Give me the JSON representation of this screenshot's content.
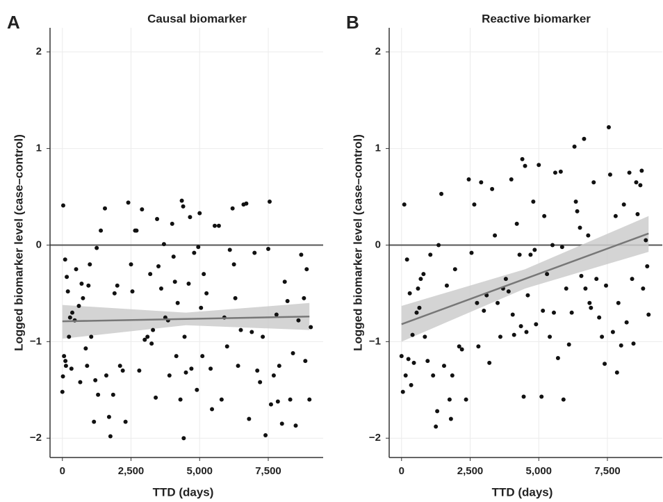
{
  "chart_data": [
    {
      "type": "scatter",
      "panel_label": "A",
      "title": "Causal biomarker",
      "xlabel": "TTD (days)",
      "ylabel": "Logged biomarker level (case–control)",
      "xlim": [
        -450,
        9500
      ],
      "ylim": [
        -2.2,
        2.25
      ],
      "xticks": [
        0,
        {
          "value": 2500,
          "label": "2,500"
        },
        {
          "value": 5000,
          "label": "5,000"
        },
        {
          "value": 7500,
          "label": "7,500"
        }
      ],
      "yticks": [
        {
          "value": -2,
          "label": "−2"
        },
        {
          "value": -1,
          "label": "−1"
        },
        0,
        1,
        2
      ],
      "grid": true,
      "hline": 0,
      "color": "#111111",
      "fit_color": "#777777",
      "band_color": "#cccccc",
      "x": [
        30,
        60,
        0,
        20,
        100,
        110,
        130,
        160,
        200,
        240,
        280,
        330,
        360,
        450,
        500,
        600,
        650,
        700,
        750,
        850,
        900,
        950,
        1000,
        1050,
        1150,
        1200,
        1250,
        1300,
        1400,
        1550,
        1600,
        1700,
        1750,
        1850,
        1900,
        2000,
        2100,
        2200,
        2300,
        2400,
        2500,
        2550,
        2650,
        2700,
        2800,
        2900,
        3000,
        3100,
        3200,
        3250,
        3300,
        3400,
        3450,
        3500,
        3600,
        3700,
        3750,
        3850,
        3900,
        4000,
        4050,
        4100,
        4150,
        4200,
        4300,
        4350,
        4400,
        4420,
        4450,
        4500,
        4600,
        4650,
        4700,
        4800,
        4900,
        4950,
        5000,
        5050,
        5100,
        5150,
        5250,
        5400,
        5450,
        5550,
        5700,
        5800,
        5900,
        6000,
        6100,
        6200,
        6250,
        6300,
        6400,
        6500,
        6600,
        6700,
        6800,
        6900,
        7000,
        7100,
        7200,
        7300,
        7400,
        7500,
        7550,
        7600,
        7700,
        7800,
        7850,
        7900,
        8000,
        8100,
        8200,
        8300,
        8400,
        8500,
        8600,
        8700,
        8800,
        8850,
        8900,
        9000,
        9050
      ],
      "y": [
        0.41,
        -1.15,
        -1.52,
        -1.36,
        -0.15,
        -1.2,
        -1.25,
        -0.33,
        -0.48,
        -0.95,
        -0.75,
        -1.28,
        -0.7,
        -0.78,
        -0.25,
        -0.63,
        -1.42,
        -0.4,
        -0.55,
        -1.07,
        -1.25,
        -0.42,
        -0.2,
        -0.95,
        -1.83,
        -1.4,
        -0.03,
        -1.55,
        0.15,
        0.38,
        -1.35,
        -1.78,
        -1.98,
        -1.55,
        -0.5,
        -0.42,
        -1.25,
        -1.3,
        -1.83,
        0.44,
        -0.2,
        -0.48,
        0.15,
        0.15,
        -1.3,
        0.37,
        -0.98,
        -0.95,
        -0.3,
        -1.02,
        -0.88,
        -1.58,
        0.27,
        -0.22,
        -0.45,
        0.01,
        -0.75,
        -0.78,
        -1.35,
        0.22,
        -0.12,
        -0.38,
        -1.15,
        -0.6,
        -1.6,
        0.46,
        0.4,
        -2.0,
        -0.95,
        -1.32,
        -0.4,
        0.29,
        -1.28,
        -0.08,
        -1.5,
        -0.02,
        0.33,
        -0.65,
        -1.15,
        -0.3,
        -0.5,
        -1.28,
        -1.7,
        0.2,
        0.2,
        -1.6,
        -0.75,
        -1.05,
        -0.05,
        0.38,
        -0.2,
        -0.55,
        -1.25,
        -0.88,
        0.42,
        0.43,
        -1.8,
        -0.9,
        -0.08,
        -1.3,
        -1.42,
        -0.95,
        -1.97,
        -0.04,
        0.45,
        -1.65,
        -1.35,
        -0.72,
        -1.62,
        -1.25,
        -1.85,
        -0.38,
        -0.58,
        -1.6,
        -1.12,
        -1.87,
        -0.78,
        -0.1,
        -0.55,
        -1.2,
        -0.25,
        -1.6,
        -0.85
      ],
      "fit": {
        "x": [
          0,
          4500,
          9000
        ],
        "y": [
          -0.79,
          -0.765,
          -0.74
        ],
        "lower": [
          -0.97,
          -0.83,
          -0.88
        ],
        "upper": [
          -0.62,
          -0.7,
          -0.6
        ]
      }
    },
    {
      "type": "scatter",
      "panel_label": "B",
      "title": "Reactive biomarker",
      "xlabel": "TTD (days)",
      "ylabel": "Logged biomarker level (case–control)",
      "xlim": [
        -450,
        9500
      ],
      "ylim": [
        -2.2,
        2.25
      ],
      "xticks": [
        0,
        {
          "value": 2500,
          "label": "2,500"
        },
        {
          "value": 5000,
          "label": "5,000"
        },
        {
          "value": 7500,
          "label": "7,500"
        }
      ],
      "yticks": [
        {
          "value": -2,
          "label": "−2"
        },
        {
          "value": -1,
          "label": "−1"
        },
        0,
        1,
        2
      ],
      "grid": true,
      "hline": 0,
      "color": "#111111",
      "fit_color": "#777777",
      "band_color": "#cccccc",
      "x": [
        0,
        50,
        100,
        150,
        200,
        250,
        300,
        350,
        400,
        450,
        550,
        600,
        650,
        700,
        800,
        850,
        950,
        1050,
        1150,
        1250,
        1300,
        1350,
        1450,
        1550,
        1650,
        1750,
        1800,
        1850,
        1950,
        2100,
        2200,
        2350,
        2450,
        2550,
        2650,
        2750,
        2800,
        2900,
        3000,
        3100,
        3200,
        3300,
        3400,
        3500,
        3600,
        3700,
        3800,
        3900,
        4000,
        4050,
        4100,
        4200,
        4300,
        4350,
        4400,
        4450,
        4500,
        4550,
        4600,
        4700,
        4800,
        4850,
        4900,
        5000,
        5100,
        5150,
        5200,
        5300,
        5400,
        5500,
        5550,
        5600,
        5700,
        5800,
        5850,
        5900,
        6000,
        6100,
        6200,
        6300,
        6350,
        6400,
        6500,
        6550,
        6650,
        6700,
        6800,
        6850,
        6900,
        7000,
        7100,
        7200,
        7300,
        7400,
        7450,
        7550,
        7600,
        7700,
        7800,
        7850,
        7900,
        8000,
        8100,
        8200,
        8300,
        8400,
        8450,
        8550,
        8600,
        8700,
        8750,
        8800,
        8900,
        8950,
        9000
      ],
      "y": [
        -1.15,
        -1.52,
        0.42,
        -1.35,
        -0.15,
        -1.18,
        -0.5,
        -1.45,
        -0.93,
        -1.22,
        -0.7,
        -0.45,
        -0.65,
        -0.35,
        -0.3,
        -0.95,
        -1.2,
        -0.1,
        -1.35,
        -1.88,
        -1.72,
        0.0,
        0.53,
        -1.25,
        -0.42,
        -1.6,
        -1.8,
        -1.35,
        -0.25,
        -1.05,
        -1.08,
        -1.6,
        0.68,
        -0.08,
        0.42,
        -0.6,
        -1.05,
        0.65,
        -0.68,
        -0.52,
        -1.22,
        0.58,
        0.1,
        -0.6,
        -0.95,
        -0.45,
        -0.35,
        -0.48,
        0.68,
        -0.72,
        -0.93,
        0.22,
        -0.1,
        -0.84,
        0.89,
        -1.57,
        0.82,
        -0.9,
        -0.52,
        -0.1,
        0.45,
        -0.05,
        -0.82,
        0.83,
        -1.57,
        -0.68,
        0.3,
        -0.3,
        -0.95,
        0.0,
        -0.7,
        0.75,
        -1.17,
        0.76,
        -0.02,
        -1.6,
        -0.45,
        -1.03,
        -0.7,
        1.02,
        0.45,
        0.35,
        0.18,
        -0.32,
        1.1,
        -0.45,
        0.1,
        -0.6,
        -0.65,
        0.65,
        -0.35,
        -0.75,
        -0.95,
        -1.23,
        -0.42,
        1.22,
        0.73,
        -0.9,
        0.3,
        -1.32,
        -0.6,
        -1.04,
        0.42,
        -0.8,
        0.75,
        -0.35,
        -1.02,
        0.65,
        0.32,
        0.62,
        0.77,
        -0.45,
        0.05,
        -0.22,
        -0.72
      ],
      "fit": {
        "x": [
          0,
          4500,
          9000
        ],
        "y": [
          -0.82,
          -0.35,
          0.12
        ],
        "lower": [
          -1.0,
          -0.45,
          -0.07
        ],
        "upper": [
          -0.63,
          -0.25,
          0.3
        ]
      }
    }
  ]
}
